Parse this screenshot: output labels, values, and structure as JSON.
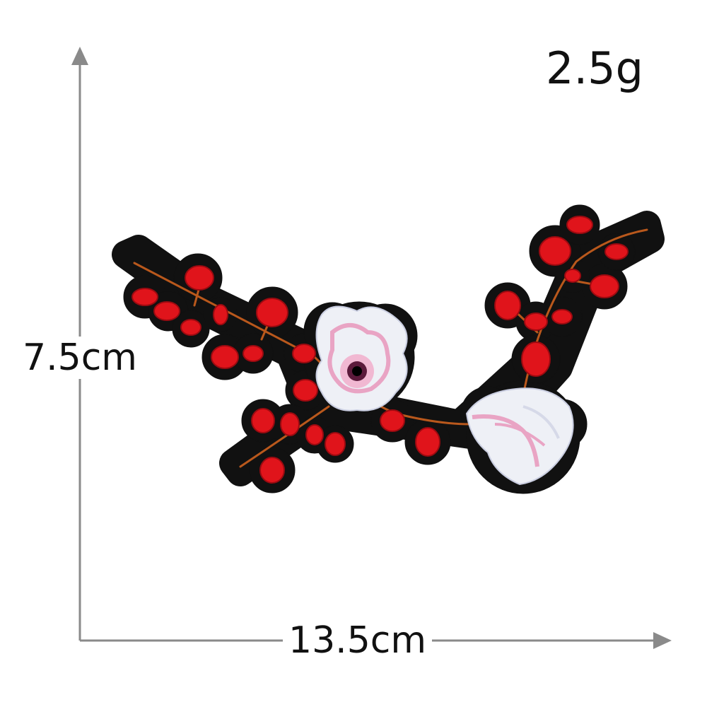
{
  "product": {
    "weight": "2.5g",
    "height": "7.5cm",
    "width": "13.5cm"
  },
  "colors": {
    "axis": "#8a8a8a",
    "felt": "#111111",
    "berry": "#e0141b",
    "stem": "#b9581c",
    "petal": "#eef0f6",
    "petal_pink": "#e9a4c4"
  },
  "icons": [
    "up-arrow-icon",
    "right-arrow-icon"
  ]
}
